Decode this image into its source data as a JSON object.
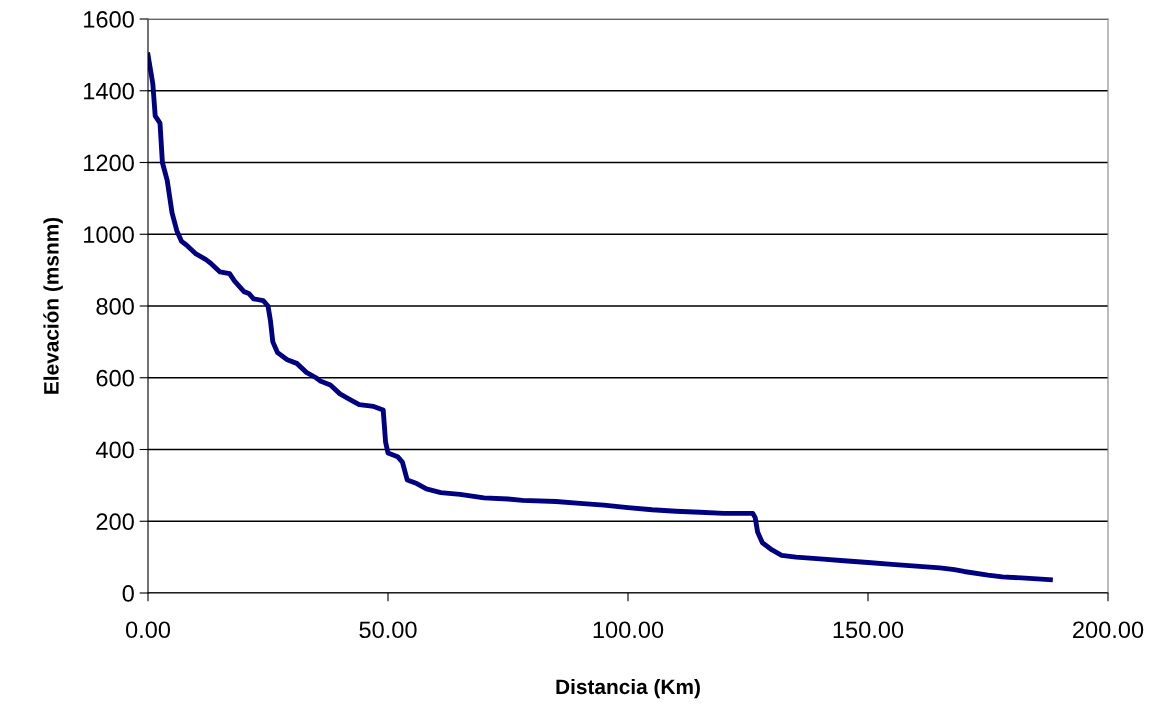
{
  "chart_data": {
    "type": "line",
    "xlabel": "Distancia (Km)",
    "ylabel": "Elevación (msnm)",
    "x": [
      0,
      1,
      1.5,
      2.5,
      3,
      4,
      5,
      6,
      7,
      8,
      10,
      12,
      13,
      15,
      17,
      18,
      20,
      21,
      22,
      24,
      25,
      25.5,
      26,
      27,
      29,
      31,
      33,
      35,
      36,
      38,
      40,
      42,
      44,
      47,
      49,
      49.5,
      50,
      52,
      53,
      54,
      56,
      58,
      61,
      65,
      70,
      75,
      78,
      85,
      90,
      95,
      100,
      105,
      110,
      115,
      120,
      126,
      126.5,
      127,
      128,
      130,
      132,
      135,
      140,
      145,
      150,
      155,
      160,
      165,
      168,
      170,
      175,
      178,
      182,
      188
    ],
    "series": [
      {
        "color": "#000080",
        "values": [
          1500,
          1420,
          1330,
          1310,
          1200,
          1150,
          1060,
          1010,
          980,
          970,
          945,
          930,
          920,
          895,
          890,
          870,
          840,
          835,
          820,
          815,
          800,
          760,
          700,
          670,
          650,
          640,
          615,
          600,
          590,
          580,
          555,
          540,
          525,
          520,
          510,
          420,
          390,
          380,
          365,
          315,
          305,
          290,
          280,
          275,
          265,
          262,
          258,
          255,
          250,
          245,
          238,
          232,
          228,
          225,
          222,
          222,
          210,
          170,
          140,
          120,
          105,
          100,
          95,
          90,
          85,
          80,
          75,
          70,
          65,
          60,
          50,
          45,
          42,
          37
        ]
      }
    ],
    "xlim": [
      0,
      200
    ],
    "xticks": [
      {
        "value": 0,
        "label": "0.00"
      },
      {
        "value": 50,
        "label": "50.00"
      },
      {
        "value": 100,
        "label": "100.00"
      },
      {
        "value": 150,
        "label": "150.00"
      },
      {
        "value": 200,
        "label": "200.00"
      }
    ],
    "ylim": [
      0,
      1600
    ],
    "yticks": [
      0,
      200,
      400,
      600,
      800,
      1000,
      1200,
      1400,
      1600
    ],
    "grid": "y",
    "marker": "none",
    "line_style": "solid"
  }
}
